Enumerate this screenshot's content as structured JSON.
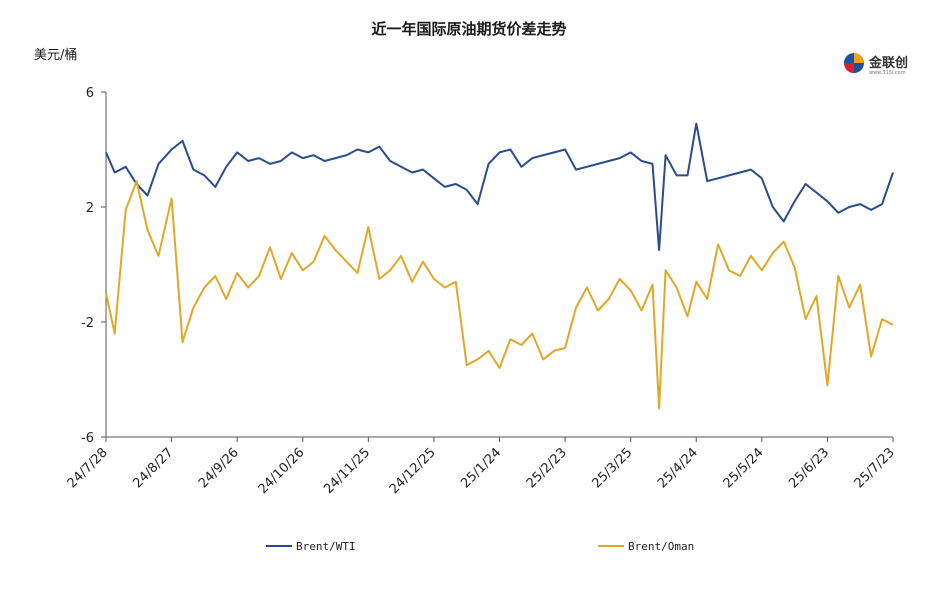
{
  "chart_data": {
    "type": "line",
    "title": "近一年国际原油期货价差走势",
    "ylabel": "美元/桶",
    "ylim": [
      -6,
      6
    ],
    "yticks": [
      -6,
      -2,
      2,
      6
    ],
    "grid": false,
    "legend_position": "bottom",
    "x_range": [
      "2024-07-28",
      "2025-07-23"
    ],
    "xticks": [
      "24/7/28",
      "24/8/27",
      "24/9/26",
      "24/10/26",
      "24/11/25",
      "24/12/25",
      "25/1/24",
      "25/2/23",
      "25/3/25",
      "25/4/24",
      "25/5/24",
      "25/6/23",
      "25/7/23"
    ],
    "series": [
      {
        "name": "Brent/WTI",
        "color": "#2b4c8c",
        "x": [
          "2024-07-28",
          "2024-08-01",
          "2024-08-06",
          "2024-08-11",
          "2024-08-16",
          "2024-08-21",
          "2024-08-27",
          "2024-09-01",
          "2024-09-06",
          "2024-09-11",
          "2024-09-16",
          "2024-09-21",
          "2024-09-26",
          "2024-10-01",
          "2024-10-06",
          "2024-10-11",
          "2024-10-16",
          "2024-10-21",
          "2024-10-26",
          "2024-10-31",
          "2024-11-05",
          "2024-11-10",
          "2024-11-15",
          "2024-11-20",
          "2024-11-25",
          "2024-11-30",
          "2024-12-05",
          "2024-12-10",
          "2024-12-15",
          "2024-12-20",
          "2024-12-25",
          "2024-12-30",
          "2025-01-04",
          "2025-01-09",
          "2025-01-14",
          "2025-01-19",
          "2025-01-24",
          "2025-01-29",
          "2025-02-03",
          "2025-02-08",
          "2025-02-13",
          "2025-02-18",
          "2025-02-23",
          "2025-02-28",
          "2025-03-05",
          "2025-03-10",
          "2025-03-15",
          "2025-03-20",
          "2025-03-25",
          "2025-03-30",
          "2025-04-04",
          "2025-04-07",
          "2025-04-10",
          "2025-04-15",
          "2025-04-20",
          "2025-04-24",
          "2025-04-29",
          "2025-05-04",
          "2025-05-09",
          "2025-05-14",
          "2025-05-19",
          "2025-05-24",
          "2025-05-29",
          "2025-06-03",
          "2025-06-08",
          "2025-06-13",
          "2025-06-18",
          "2025-06-23",
          "2025-06-28",
          "2025-07-03",
          "2025-07-08",
          "2025-07-13",
          "2025-07-18",
          "2025-07-23"
        ],
        "values": [
          3.9,
          3.2,
          3.4,
          2.8,
          2.4,
          3.5,
          4.0,
          4.3,
          3.3,
          3.1,
          2.7,
          3.4,
          3.9,
          3.6,
          3.7,
          3.5,
          3.6,
          3.9,
          3.7,
          3.8,
          3.6,
          3.7,
          3.8,
          4.0,
          3.9,
          4.1,
          3.6,
          3.4,
          3.2,
          3.3,
          3.0,
          2.7,
          2.8,
          2.6,
          2.1,
          3.5,
          3.9,
          4.0,
          3.4,
          3.7,
          3.8,
          3.9,
          4.0,
          3.3,
          3.4,
          3.5,
          3.6,
          3.7,
          3.9,
          3.6,
          3.5,
          0.5,
          3.8,
          3.1,
          3.1,
          4.9,
          2.9,
          3.0,
          3.1,
          3.2,
          3.3,
          3.0,
          2.0,
          1.5,
          2.2,
          2.8,
          2.5,
          2.2,
          1.8,
          2.0,
          2.1,
          1.9,
          2.1,
          3.2
        ]
      },
      {
        "name": "Brent/Oman",
        "color": "#e0a829",
        "x": [
          "2024-07-28",
          "2024-08-01",
          "2024-08-06",
          "2024-08-11",
          "2024-08-16",
          "2024-08-21",
          "2024-08-27",
          "2024-09-01",
          "2024-09-06",
          "2024-09-11",
          "2024-09-16",
          "2024-09-21",
          "2024-09-26",
          "2024-10-01",
          "2024-10-06",
          "2024-10-11",
          "2024-10-16",
          "2024-10-21",
          "2024-10-26",
          "2024-10-31",
          "2024-11-05",
          "2024-11-10",
          "2024-11-15",
          "2024-11-20",
          "2024-11-25",
          "2024-11-30",
          "2024-12-05",
          "2024-12-10",
          "2024-12-15",
          "2024-12-20",
          "2024-12-25",
          "2024-12-30",
          "2025-01-04",
          "2025-01-09",
          "2025-01-14",
          "2025-01-19",
          "2025-01-24",
          "2025-01-29",
          "2025-02-03",
          "2025-02-08",
          "2025-02-13",
          "2025-02-18",
          "2025-02-23",
          "2025-02-28",
          "2025-03-05",
          "2025-03-10",
          "2025-03-15",
          "2025-03-20",
          "2025-03-25",
          "2025-03-30",
          "2025-04-04",
          "2025-04-07",
          "2025-04-10",
          "2025-04-15",
          "2025-04-20",
          "2025-04-24",
          "2025-04-29",
          "2025-05-04",
          "2025-05-09",
          "2025-05-14",
          "2025-05-19",
          "2025-05-24",
          "2025-05-29",
          "2025-06-03",
          "2025-06-08",
          "2025-06-13",
          "2025-06-18",
          "2025-06-23",
          "2025-06-28",
          "2025-07-03",
          "2025-07-08",
          "2025-07-13",
          "2025-07-18",
          "2025-07-23"
        ],
        "values": [
          -1.0,
          -2.4,
          1.9,
          2.9,
          1.2,
          0.3,
          2.3,
          -2.7,
          -1.5,
          -0.8,
          -0.4,
          -1.2,
          -0.3,
          -0.8,
          -0.4,
          0.6,
          -0.5,
          0.4,
          -0.2,
          0.1,
          1.0,
          0.5,
          0.1,
          -0.3,
          1.3,
          -0.5,
          -0.2,
          0.3,
          -0.6,
          0.1,
          -0.5,
          -0.8,
          -0.6,
          -3.5,
          -3.3,
          -3.0,
          -3.6,
          -2.6,
          -2.8,
          -2.4,
          -3.3,
          -3.0,
          -2.9,
          -1.5,
          -0.8,
          -1.6,
          -1.2,
          -0.5,
          -0.9,
          -1.6,
          -0.7,
          -5.0,
          -0.2,
          -0.8,
          -1.8,
          -0.6,
          -1.2,
          0.7,
          -0.2,
          -0.4,
          0.3,
          -0.2,
          0.4,
          0.8,
          -0.1,
          -1.9,
          -1.1,
          -4.2,
          -0.4,
          -1.5,
          -0.7,
          -3.2,
          -1.9,
          -2.1
        ]
      }
    ]
  },
  "logo": {
    "name": "金联创",
    "url": "www.315i.com"
  }
}
